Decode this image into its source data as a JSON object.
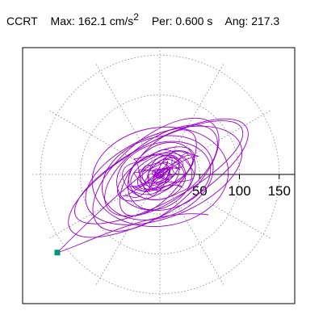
{
  "header": {
    "station": "CCRT",
    "max_label": "Max:",
    "max_value": "162.1",
    "max_unit": "cm/s",
    "max_unit_exp": "2",
    "per_label": "Per:",
    "per_value": "0.600 s",
    "ang_label": "Ang:",
    "ang_value": "217.3"
  },
  "chart_data": {
    "type": "polar-orbit",
    "title": "",
    "radial_ticks": [
      {
        "value": 50,
        "label": "50"
      },
      {
        "value": 100,
        "label": "100"
      },
      {
        "value": 150,
        "label": "150"
      }
    ],
    "radial_range": [
      0,
      175
    ],
    "angular_grid_deg": [
      0,
      30,
      60,
      90,
      120,
      150,
      180,
      210,
      240,
      270,
      300,
      330
    ],
    "grid": true,
    "trace_color": "#9900cc",
    "marker_color": "#009977",
    "peak": {
      "amplitude": 162.1,
      "angle_deg": 217.3
    },
    "orbit_ellipses": [
      {
        "a": 128,
        "b": 44,
        "rot": 30
      },
      {
        "a": 118,
        "b": 38,
        "rot": 28
      },
      {
        "a": 104,
        "b": 52,
        "rot": 22
      },
      {
        "a": 96,
        "b": 46,
        "rot": 40
      },
      {
        "a": 86,
        "b": 62,
        "rot": 8
      },
      {
        "a": 82,
        "b": 40,
        "rot": 35
      },
      {
        "a": 72,
        "b": 50,
        "rot": 20
      },
      {
        "a": 66,
        "b": 30,
        "rot": 50
      },
      {
        "a": 60,
        "b": 42,
        "rot": 15
      },
      {
        "a": 54,
        "b": 24,
        "rot": 30
      },
      {
        "a": 48,
        "b": 36,
        "rot": 45
      },
      {
        "a": 42,
        "b": 20,
        "rot": 25
      },
      {
        "a": 36,
        "b": 28,
        "rot": 10
      },
      {
        "a": 30,
        "b": 16,
        "rot": 35
      },
      {
        "a": 24,
        "b": 18,
        "rot": 60
      },
      {
        "a": 18,
        "b": 12,
        "rot": 20
      },
      {
        "a": 12,
        "b": 8,
        "rot": 40
      }
    ]
  }
}
